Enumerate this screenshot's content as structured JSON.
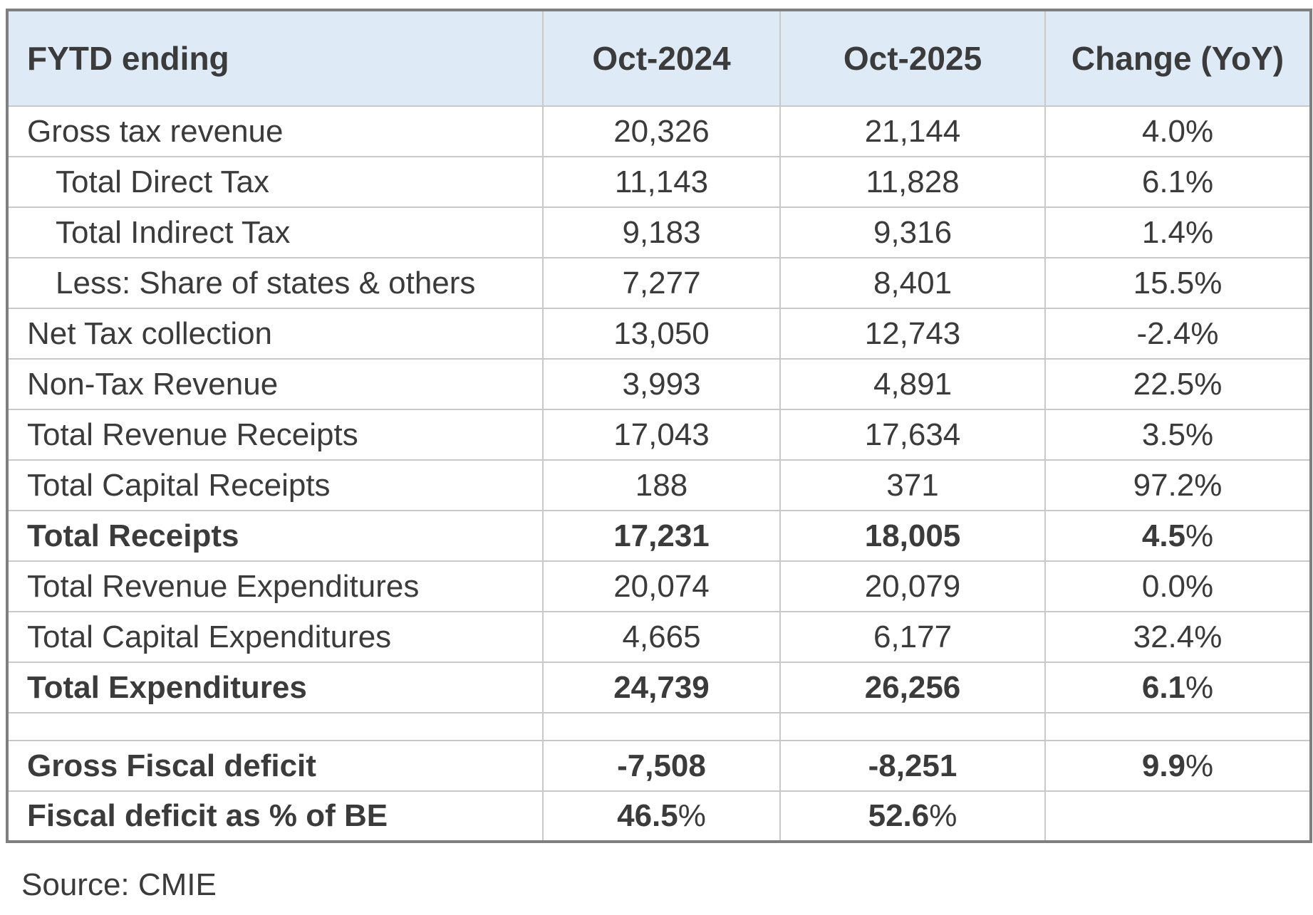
{
  "chart_data": {
    "type": "table",
    "title_column": "FYTD ending",
    "columns": [
      "Oct-2024",
      "Oct-2025",
      "Change (YoY)"
    ],
    "rows": [
      {
        "label": "Gross tax revenue",
        "values": [
          "20,326",
          "21,144",
          "4.0%"
        ],
        "bold": false,
        "indent": false,
        "spacer": false
      },
      {
        "label": "Total Direct Tax",
        "values": [
          "11,143",
          "11,828",
          "6.1%"
        ],
        "bold": false,
        "indent": true,
        "spacer": false
      },
      {
        "label": "Total Indirect Tax",
        "values": [
          "9,183",
          "9,316",
          "1.4%"
        ],
        "bold": false,
        "indent": true,
        "spacer": false
      },
      {
        "label": "Less: Share of states & others",
        "values": [
          "7,277",
          "8,401",
          "15.5%"
        ],
        "bold": false,
        "indent": true,
        "spacer": false
      },
      {
        "label": "Net Tax collection",
        "values": [
          "13,050",
          "12,743",
          "-2.4%"
        ],
        "bold": false,
        "indent": false,
        "spacer": false
      },
      {
        "label": "Non-Tax Revenue",
        "values": [
          "3,993",
          "4,891",
          "22.5%"
        ],
        "bold": false,
        "indent": false,
        "spacer": false
      },
      {
        "label": "Total Revenue Receipts",
        "values": [
          "17,043",
          "17,634",
          "3.5%"
        ],
        "bold": false,
        "indent": false,
        "spacer": false
      },
      {
        "label": "Total Capital Receipts",
        "values": [
          "188",
          "371",
          "97.2%"
        ],
        "bold": false,
        "indent": false,
        "spacer": false
      },
      {
        "label": "Total Receipts",
        "values": [
          "17,231",
          "18,005",
          "4.5%"
        ],
        "bold": true,
        "indent": false,
        "spacer": false
      },
      {
        "label": "Total Revenue Expenditures",
        "values": [
          "20,074",
          "20,079",
          "0.0%"
        ],
        "bold": false,
        "indent": false,
        "spacer": false
      },
      {
        "label": "Total Capital Expenditures",
        "values": [
          "4,665",
          "6,177",
          "32.4%"
        ],
        "bold": false,
        "indent": false,
        "spacer": false
      },
      {
        "label": "Total Expenditures",
        "values": [
          "24,739",
          "26,256",
          "6.1%"
        ],
        "bold": true,
        "indent": false,
        "spacer": false
      },
      {
        "label": "",
        "values": [
          "",
          "",
          ""
        ],
        "bold": false,
        "indent": false,
        "spacer": true
      },
      {
        "label": "Gross Fiscal deficit",
        "values": [
          "-7,508",
          "-8,251",
          "9.9%"
        ],
        "bold": true,
        "indent": false,
        "spacer": false
      },
      {
        "label": "Fiscal deficit as % of BE",
        "values": [
          "46.5%",
          "52.6%",
          ""
        ],
        "bold": true,
        "indent": false,
        "spacer": false
      }
    ],
    "source": "Source: CMIE"
  },
  "colors": {
    "header_bg": "#deebf7",
    "border_outer": "#7f7f7f",
    "border_inner": "#c9c9c9",
    "text": "#3b3b3b",
    "page_bg": "#ffffff"
  }
}
